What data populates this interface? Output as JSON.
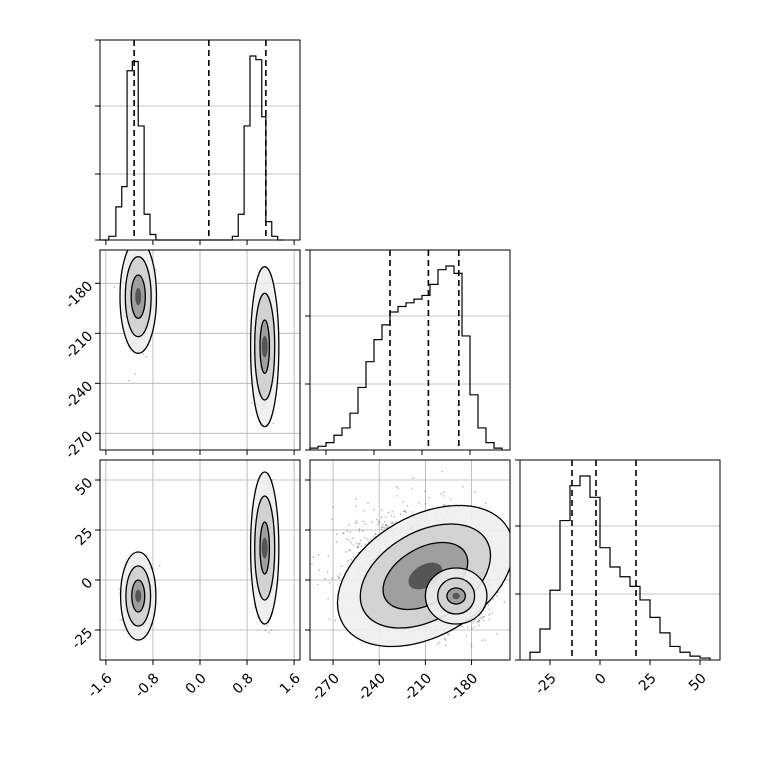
{
  "chart_data": {
    "type": "corner",
    "grid": true,
    "x_ticks": {
      "p1": [
        "-1.6",
        "-0.8",
        "0.0",
        "0.8",
        "1.6"
      ],
      "p2": [
        "-270",
        "-240",
        "-210",
        "-180"
      ],
      "p3": [
        "-25",
        "0",
        "25",
        "50"
      ]
    },
    "y_ticks": {
      "row2": [
        "-180",
        "-210",
        "-240",
        "-270"
      ],
      "row3": [
        "50",
        "25",
        "0",
        "-25"
      ]
    },
    "diag_p1": {
      "type": "histogram",
      "xlim": [
        -1.7,
        1.7
      ],
      "quantiles_dashed": [
        -1.12,
        0.15,
        1.12
      ],
      "bin_edges": [
        -1.7,
        -1.55,
        -1.43,
        -1.33,
        -1.24,
        -1.15,
        -1.05,
        -0.95,
        -0.85,
        -0.75,
        -0.65,
        -0.55,
        0.55,
        0.65,
        0.75,
        0.85,
        0.95,
        1.05,
        1.12,
        1.22,
        1.32,
        1.42
      ],
      "heights": [
        0.0,
        0.02,
        0.18,
        0.29,
        0.92,
        0.97,
        0.62,
        0.14,
        0.03,
        0.0,
        0.0,
        0.0,
        0.02,
        0.14,
        0.62,
        1.0,
        0.98,
        0.67,
        0.1,
        0.02,
        0.0
      ]
    },
    "diag_p2": {
      "type": "histogram",
      "xlim": [
        -280,
        -155
      ],
      "quantiles_dashed": [
        -230,
        -206,
        -187
      ],
      "bin_edges": [
        -280,
        -275,
        -270,
        -265,
        -260,
        -255,
        -250,
        -245,
        -240,
        -235,
        -230,
        -225,
        -220,
        -215,
        -210,
        -205,
        -200,
        -195,
        -190,
        -185,
        -180,
        -175,
        -170,
        -165,
        -160
      ],
      "heights": [
        0.01,
        0.02,
        0.04,
        0.08,
        0.12,
        0.2,
        0.34,
        0.48,
        0.6,
        0.68,
        0.75,
        0.78,
        0.8,
        0.82,
        0.84,
        0.9,
        0.98,
        1.0,
        0.96,
        0.62,
        0.3,
        0.12,
        0.04,
        0.01
      ]
    },
    "diag_p3": {
      "type": "histogram",
      "xlim": [
        -40,
        60
      ],
      "quantiles_dashed": [
        -14,
        -2,
        18
      ],
      "bin_edges": [
        -35,
        -30,
        -25,
        -20,
        -15,
        -10,
        -5,
        0,
        5,
        10,
        15,
        20,
        25,
        30,
        35,
        40,
        45,
        50,
        55
      ],
      "heights": [
        0.04,
        0.16,
        0.36,
        0.72,
        0.9,
        0.95,
        0.84,
        0.58,
        0.48,
        0.43,
        0.38,
        0.31,
        0.22,
        0.14,
        0.07,
        0.04,
        0.02,
        0.01
      ]
    },
    "scatter_p2_vs_p1": {
      "xlim": [
        -1.7,
        1.7
      ],
      "ylim": [
        -280,
        -160
      ],
      "clusters": [
        {
          "x": -1.05,
          "y": -188,
          "sx": 0.1,
          "sy": 12,
          "n": 900
        },
        {
          "x": 1.1,
          "y": -218,
          "sx": 0.07,
          "sy": 16,
          "n": 900
        }
      ],
      "contours": [
        {
          "cx": -1.05,
          "cy": -188,
          "rx": [
            0.31,
            0.22,
            0.12
          ],
          "ry": [
            34,
            24,
            13
          ]
        },
        {
          "cx": 1.1,
          "cy": -218,
          "rx": [
            0.24,
            0.17,
            0.08
          ],
          "ry": [
            48,
            32,
            16
          ]
        }
      ]
    },
    "scatter_p3_vs_p1": {
      "xlim": [
        -1.7,
        1.7
      ],
      "ylim": [
        -40,
        60
      ],
      "clusters": [
        {
          "x": -1.05,
          "y": -8,
          "sx": 0.1,
          "sy": 7,
          "n": 900
        },
        {
          "x": 1.1,
          "y": 16,
          "sx": 0.07,
          "sy": 12,
          "n": 900
        }
      ],
      "contours": [
        {
          "cx": -1.05,
          "cy": -8,
          "rx": [
            0.3,
            0.21,
            0.11
          ],
          "ry": [
            22,
            15,
            8
          ]
        },
        {
          "cx": 1.1,
          "cy": 16,
          "rx": [
            0.24,
            0.17,
            0.08
          ],
          "ry": [
            38,
            26,
            13
          ]
        }
      ]
    },
    "scatter_p3_vs_p2": {
      "xlim": [
        -285,
        -155
      ],
      "ylim": [
        -40,
        60
      ],
      "clusters": [
        {
          "x": -215,
          "y": 8,
          "sx": 22,
          "sy": 14,
          "n": 1400
        },
        {
          "x": -190,
          "y": -8,
          "sx": 10,
          "sy": 7,
          "n": 800
        }
      ],
      "contours": [
        {
          "cx": -210,
          "cy": 2,
          "rx": [
            62,
            46,
            30
          ],
          "ry": [
            30,
            22,
            14
          ],
          "angle": -30
        },
        {
          "cx": -190,
          "cy": -8,
          "rx": [
            20,
            12,
            6
          ],
          "ry": [
            14,
            9,
            4
          ],
          "angle": 0
        }
      ]
    },
    "colors": {
      "ink": "#000000",
      "grid": "#b0b0b0",
      "scatter": "#444444",
      "fill_levels": [
        "#eeeeee",
        "#cfcfcf",
        "#999999",
        "#555555"
      ]
    }
  }
}
